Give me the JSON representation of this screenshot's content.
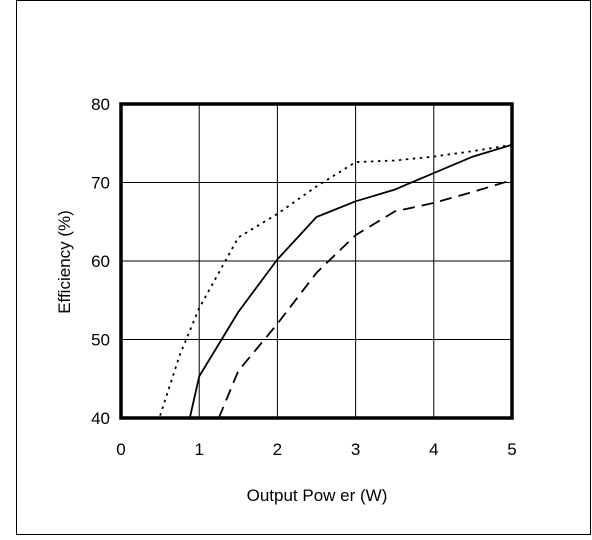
{
  "chart_data": {
    "type": "line",
    "xlabel": "Output Pow er (W)",
    "ylabel": "Efficiency (%)",
    "xlim": [
      0,
      5
    ],
    "ylim": [
      40,
      80
    ],
    "x_ticks": [
      0,
      1,
      2,
      3,
      4,
      5
    ],
    "y_ticks": [
      40,
      50,
      60,
      70,
      80
    ],
    "grid": true,
    "legend": "none",
    "series": [
      {
        "style": "solid",
        "color": "#000000",
        "points": [
          [
            0.88,
            40
          ],
          [
            1.0,
            45.3
          ],
          [
            1.5,
            53.5
          ],
          [
            2.0,
            60.2
          ],
          [
            2.5,
            65.6
          ],
          [
            3.0,
            67.6
          ],
          [
            3.5,
            69.1
          ],
          [
            4.0,
            71.2
          ],
          [
            4.5,
            73.3
          ],
          [
            5.0,
            74.8
          ]
        ]
      },
      {
        "style": "dotted",
        "color": "#000000",
        "points": [
          [
            0.5,
            40.3
          ],
          [
            0.75,
            48
          ],
          [
            1.0,
            54
          ],
          [
            1.5,
            63
          ],
          [
            2.0,
            66
          ],
          [
            2.5,
            69.5
          ],
          [
            3.0,
            72.6
          ],
          [
            3.5,
            72.8
          ],
          [
            4.0,
            73.3
          ],
          [
            4.5,
            74
          ],
          [
            5.0,
            74.8
          ]
        ]
      },
      {
        "style": "dashed",
        "color": "#000000",
        "points": [
          [
            1.25,
            40
          ],
          [
            1.5,
            46
          ],
          [
            2.0,
            52
          ],
          [
            2.5,
            58.5
          ],
          [
            3.0,
            63.3
          ],
          [
            3.5,
            66.3
          ],
          [
            4.0,
            67.4
          ],
          [
            4.5,
            68.8
          ],
          [
            5.0,
            70.3
          ]
        ]
      }
    ]
  }
}
